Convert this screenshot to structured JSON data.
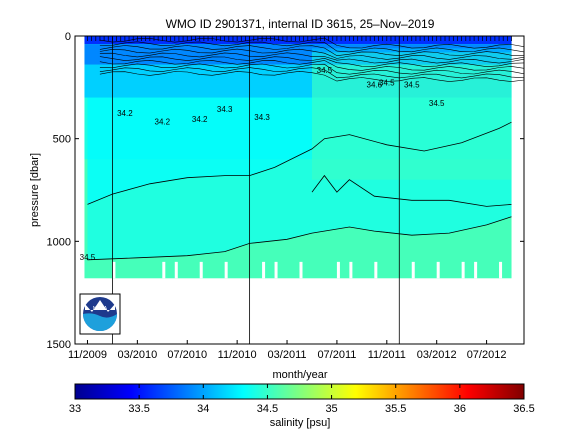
{
  "chart_data": [
    {
      "type": "heatmap",
      "title": "WMO ID 2901371, internal ID 3615, 25–Nov–2019",
      "xlabel": "month/year",
      "ylabel": "pressure [dbar]",
      "x_tick_labels": [
        "11/2009",
        "03/2010",
        "07/2010",
        "11/2010",
        "03/2011",
        "07/2011",
        "11/2011",
        "03/2012",
        "07/2012"
      ],
      "y_ticks": [
        0,
        500,
        1000,
        1500
      ],
      "y_tick_labels": [
        "0",
        "500",
        "1000",
        "1500"
      ],
      "ylim": [
        1500,
        0
      ],
      "y_reversed": true,
      "data_end": "2012-09",
      "max_pressure_dbar": 1180,
      "contour_levels": [
        34.2,
        34.3,
        34.4,
        34.5
      ],
      "contour_labels": [
        {
          "text": "34.2",
          "x": "2010-02",
          "y": 390
        },
        {
          "text": "34.2",
          "x": "2010-08",
          "y": 420
        },
        {
          "text": "34.3",
          "x": "2010-10",
          "y": 370
        },
        {
          "text": "34.3",
          "x": "2011-01",
          "y": 410
        },
        {
          "text": "34.2",
          "x": "2010-05",
          "y": 430
        },
        {
          "text": "34.5",
          "x": "2011-06",
          "y": 180
        },
        {
          "text": "34.5",
          "x": "2011-11",
          "y": 240
        },
        {
          "text": "34.6",
          "x": "2011-10",
          "y": 250
        },
        {
          "text": "34.5",
          "x": "2012-03",
          "y": 340
        },
        {
          "text": "34.5",
          "x": "2012-01",
          "y": 250
        },
        {
          "text": "34.5",
          "x": "2009-11",
          "y": 1090
        }
      ],
      "profile_gap_lines": [
        "2010-01",
        "2010-12",
        "2011-12"
      ],
      "iso_lines": [
        {
          "level": 34.4,
          "points": [
            [
              "2009-11",
              820
            ],
            [
              "2010-01",
              770
            ],
            [
              "2010-04",
              720
            ],
            [
              "2010-07",
              690
            ],
            [
              "2010-10",
              680
            ],
            [
              "2010-12",
              680
            ],
            [
              "2011-02",
              640
            ],
            [
              "2011-05",
              550
            ],
            [
              "2011-06",
              500
            ],
            [
              "2011-08",
              480
            ],
            [
              "2011-11",
              530
            ],
            [
              "2012-02",
              560
            ],
            [
              "2012-05",
              520
            ],
            [
              "2012-08",
              450
            ],
            [
              "2012-09",
              420
            ]
          ]
        },
        {
          "level": 34.45,
          "points": [
            [
              "2011-05",
              760
            ],
            [
              "2011-06",
              680
            ],
            [
              "2011-07",
              760
            ],
            [
              "2011-08",
              700
            ],
            [
              "2011-10",
              780
            ],
            [
              "2012-01",
              800
            ],
            [
              "2012-04",
              800
            ],
            [
              "2012-07",
              830
            ],
            [
              "2012-09",
              820
            ]
          ]
        },
        {
          "level": 34.5,
          "points": [
            [
              "2009-11",
              1090
            ],
            [
              "2010-03",
              1080
            ],
            [
              "2010-07",
              1070
            ],
            [
              "2010-10",
              1050
            ],
            [
              "2010-12",
              1010
            ],
            [
              "2011-03",
              990
            ],
            [
              "2011-05",
              960
            ],
            [
              "2011-08",
              930
            ],
            [
              "2011-10",
              950
            ],
            [
              "2012-01",
              970
            ],
            [
              "2012-04",
              960
            ],
            [
              "2012-07",
              920
            ],
            [
              "2012-09",
              880
            ]
          ]
        }
      ],
      "fill_zones": [
        {
          "value": 33.6,
          "top": 0,
          "bottom": 40
        },
        {
          "value": 33.9,
          "top": 40,
          "bottom": 140
        },
        {
          "value": 34.15,
          "top": 140,
          "bottom": 300
        },
        {
          "value": 34.3,
          "top": 300,
          "bottom": 600
        }
      ]
    },
    {
      "type": "colorbar",
      "label": "salinity [psu]",
      "range": [
        33,
        36.5
      ],
      "ticks": [
        33,
        33.5,
        34,
        34.5,
        35,
        35.5,
        36,
        36.5
      ],
      "tick_labels": [
        "33",
        "33.5",
        "34",
        "34.5",
        "35",
        "35.5",
        "36",
        "36.5"
      ],
      "colormap": "jet"
    }
  ],
  "logo": {
    "text": "NOAA"
  },
  "colors": {
    "bar_border": "#000000",
    "background": "#ffffff"
  }
}
